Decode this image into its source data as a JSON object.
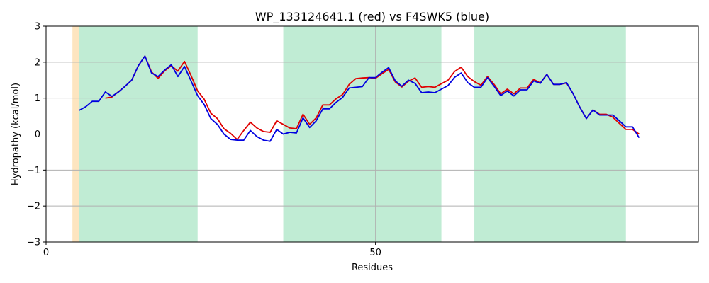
{
  "chart_data": {
    "type": "line",
    "title": "WP_133124641.1 (red) vs F4SWK5 (blue)",
    "xlabel": "Residues",
    "ylabel": "Hydropathy (kcal/mol)",
    "xlim": [
      0,
      99
    ],
    "ylim": [
      -3,
      3
    ],
    "x_ticks": [
      0,
      50
    ],
    "y_ticks": [
      -3,
      -2,
      -1,
      0,
      1,
      2,
      3
    ],
    "grid": true,
    "zero_line": true,
    "regions": [
      {
        "start": 4,
        "end": 5,
        "color": "#fde5c0"
      },
      {
        "start": 5,
        "end": 23,
        "color": "#c0ecd4"
      },
      {
        "start": 36,
        "end": 60,
        "color": "#c0ecd4"
      },
      {
        "start": 65,
        "end": 88,
        "color": "#c0ecd4"
      }
    ],
    "series": [
      {
        "color": "#e00000",
        "x": [
          9,
          10,
          11,
          12,
          13,
          14,
          15,
          16,
          17,
          18,
          19,
          20,
          21,
          22,
          23,
          24,
          25,
          26,
          27,
          28,
          29,
          30,
          31,
          32,
          33,
          34,
          35,
          36,
          37,
          38,
          39,
          40,
          41,
          42,
          43,
          44,
          45,
          46,
          47,
          48,
          49,
          50,
          51,
          52,
          53,
          54,
          55,
          56,
          57,
          58,
          59,
          60,
          61,
          62,
          63,
          64,
          65,
          66,
          67,
          68,
          69,
          70,
          71,
          72,
          73,
          74,
          75,
          76,
          77,
          78,
          79,
          80,
          81,
          82,
          83,
          84,
          85,
          86,
          87,
          88,
          89,
          90
        ],
        "values": [
          1.0,
          1.03,
          1.18,
          1.33,
          1.5,
          1.9,
          2.17,
          1.73,
          1.55,
          1.76,
          1.9,
          1.75,
          2.02,
          1.63,
          1.2,
          0.97,
          0.58,
          0.43,
          0.15,
          0.02,
          -0.15,
          0.1,
          0.33,
          0.17,
          0.07,
          0.05,
          0.37,
          0.27,
          0.17,
          0.15,
          0.55,
          0.27,
          0.45,
          0.81,
          0.81,
          0.98,
          1.1,
          1.38,
          1.54,
          1.56,
          1.57,
          1.55,
          1.68,
          1.8,
          1.45,
          1.31,
          1.47,
          1.56,
          1.3,
          1.32,
          1.3,
          1.4,
          1.5,
          1.74,
          1.86,
          1.6,
          1.46,
          1.36,
          1.6,
          1.38,
          1.12,
          1.25,
          1.12,
          1.28,
          1.28,
          1.52,
          1.42,
          1.66,
          1.38,
          1.38,
          1.42,
          1.12,
          0.75,
          0.43,
          0.67,
          0.55,
          0.55,
          0.47,
          0.3,
          0.13,
          0.13,
          0.0
        ]
      },
      {
        "color": "#0000e0",
        "x": [
          5,
          6,
          7,
          8,
          9,
          10,
          11,
          12,
          13,
          14,
          15,
          16,
          17,
          18,
          19,
          20,
          21,
          22,
          23,
          24,
          25,
          26,
          27,
          28,
          29,
          30,
          31,
          32,
          33,
          34,
          35,
          36,
          37,
          38,
          39,
          40,
          41,
          42,
          43,
          44,
          45,
          46,
          47,
          48,
          49,
          50,
          51,
          52,
          53,
          54,
          55,
          56,
          57,
          58,
          59,
          60,
          61,
          62,
          63,
          64,
          65,
          66,
          67,
          68,
          69,
          70,
          71,
          72,
          73,
          74,
          75,
          76,
          77,
          78,
          79,
          80,
          81,
          82,
          83,
          84,
          85,
          86,
          87,
          88,
          89,
          90
        ],
        "values": [
          0.66,
          0.76,
          0.91,
          0.91,
          1.17,
          1.05,
          1.17,
          1.33,
          1.5,
          1.9,
          2.17,
          1.7,
          1.6,
          1.78,
          1.93,
          1.6,
          1.88,
          1.48,
          1.07,
          0.82,
          0.43,
          0.27,
          0.0,
          -0.15,
          -0.17,
          -0.17,
          0.1,
          -0.07,
          -0.17,
          -0.2,
          0.13,
          0.0,
          0.05,
          0.03,
          0.45,
          0.18,
          0.37,
          0.7,
          0.7,
          0.88,
          1.02,
          1.28,
          1.3,
          1.32,
          1.57,
          1.57,
          1.72,
          1.85,
          1.48,
          1.33,
          1.5,
          1.41,
          1.15,
          1.17,
          1.15,
          1.25,
          1.35,
          1.58,
          1.7,
          1.43,
          1.3,
          1.3,
          1.57,
          1.33,
          1.07,
          1.2,
          1.06,
          1.23,
          1.23,
          1.48,
          1.41,
          1.66,
          1.38,
          1.38,
          1.43,
          1.12,
          0.75,
          0.43,
          0.67,
          0.53,
          0.53,
          0.53,
          0.37,
          0.2,
          0.2,
          -0.1
        ]
      }
    ]
  }
}
